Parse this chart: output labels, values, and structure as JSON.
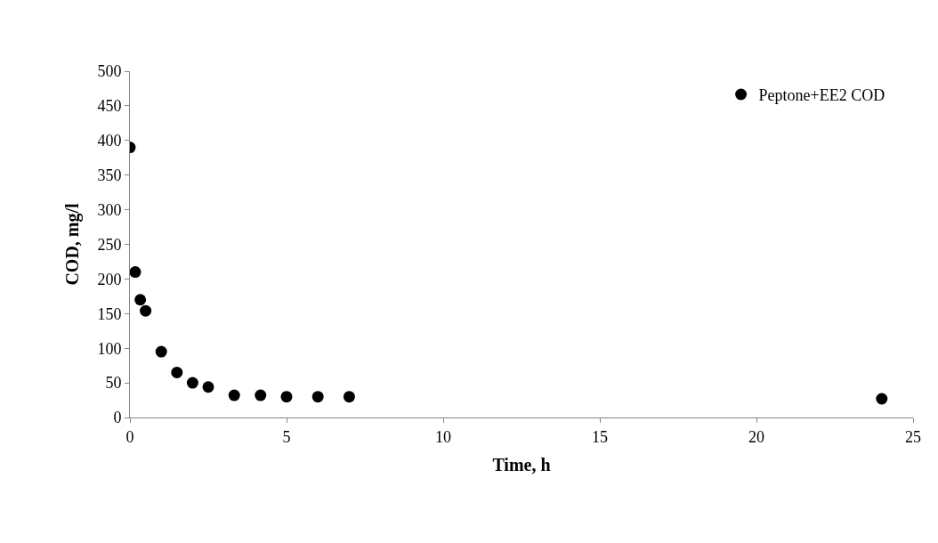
{
  "chart_data": {
    "type": "scatter",
    "xlabel": "Time, h",
    "ylabel": "COD, mg/l",
    "series": [
      {
        "name": "Peptone+EE2 COD",
        "color": "#000000",
        "x": [
          0,
          0.17,
          0.33,
          0.5,
          1,
          1.5,
          2,
          2.5,
          3.33,
          4.17,
          5,
          6,
          7,
          24
        ],
        "values": [
          390,
          210,
          170,
          154,
          95,
          65,
          50,
          44,
          32,
          32,
          30,
          30,
          30,
          27
        ]
      }
    ],
    "xlim": [
      0,
      25
    ],
    "xticks": [
      0,
      5,
      10,
      15,
      20,
      25
    ],
    "ylim": [
      0,
      500
    ],
    "yticks": [
      0,
      50,
      100,
      150,
      200,
      250,
      300,
      350,
      400,
      450,
      500
    ],
    "legend": "top right",
    "marker": "circle"
  }
}
